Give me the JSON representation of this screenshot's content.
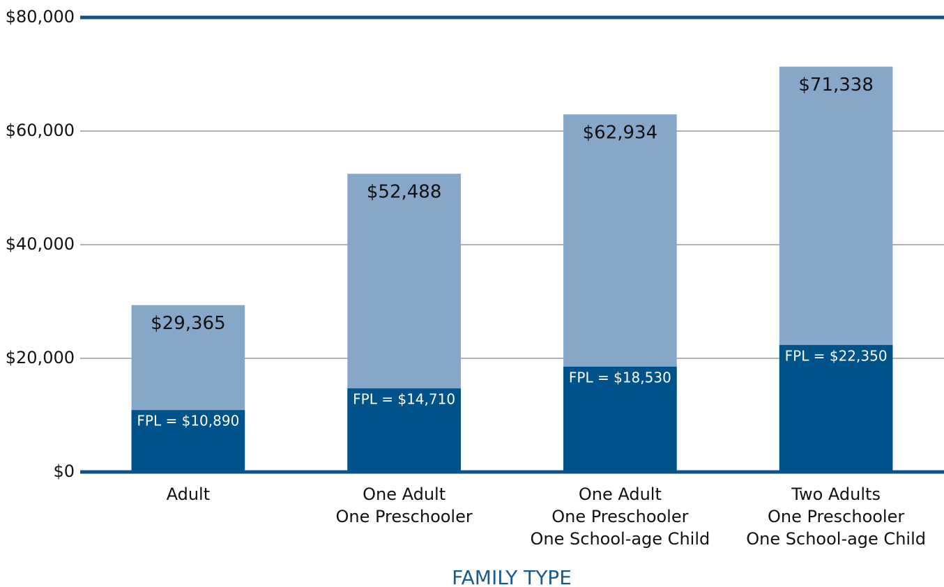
{
  "chart_data": {
    "type": "bar",
    "x_label": "FAMILY TYPE",
    "categories": [
      [
        "Adult"
      ],
      [
        "One Adult",
        "One Preschooler"
      ],
      [
        "One Adult",
        "One Preschooler",
        "One School-age Child"
      ],
      [
        "Two Adults",
        "One Preschooler",
        "One School-age Child"
      ]
    ],
    "series": [
      {
        "color": "#87a7c9",
        "values": [
          29365,
          52488,
          62934,
          71338
        ],
        "value_labels": [
          "$29,365",
          "$52,488",
          "$62,934",
          "$71,338"
        ]
      },
      {
        "color": "#00538a",
        "values": [
          10890,
          14710,
          18530,
          22350
        ],
        "value_labels": [
          "FPL = $10,890",
          "FPL = $14,710",
          "FPL = $18,530",
          "FPL = $22,350"
        ]
      }
    ],
    "ylim": [
      0,
      80000
    ],
    "yticks": [
      {
        "value": 0,
        "label": "$0"
      },
      {
        "value": 20000,
        "label": "$20,000"
      },
      {
        "value": 40000,
        "label": "$40,000"
      },
      {
        "value": 60000,
        "label": "$60,000"
      },
      {
        "value": 80000,
        "label": "$80,000"
      }
    ],
    "grid": true
  }
}
